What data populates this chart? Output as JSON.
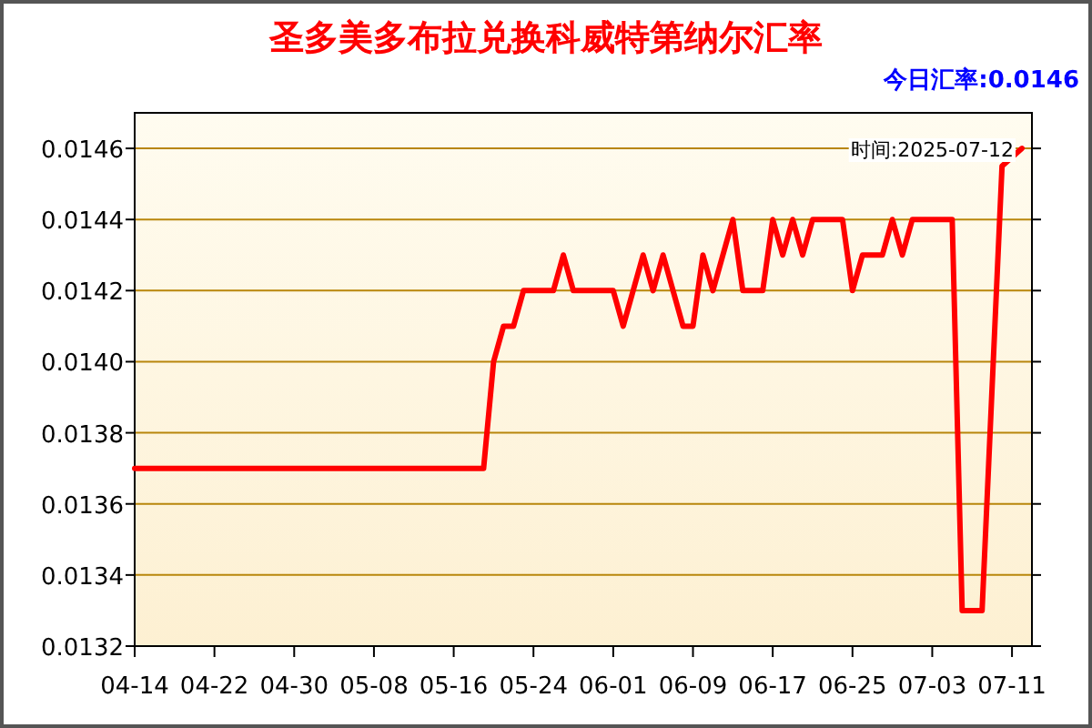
{
  "chart_data": {
    "type": "line",
    "title": "圣多美多布拉兑换科威特第纳尔汇率",
    "annotations": [
      "今日汇率:0.0146",
      "时间:2025-07-12"
    ],
    "x": [
      "2025-04-14",
      "2025-05-19",
      "2025-05-20",
      "2025-05-21",
      "2025-05-22",
      "2025-05-23",
      "2025-05-26",
      "2025-05-27",
      "2025-05-28",
      "2025-06-01",
      "2025-06-02",
      "2025-06-04",
      "2025-06-05",
      "2025-06-06",
      "2025-06-08",
      "2025-06-09",
      "2025-06-10",
      "2025-06-11",
      "2025-06-13",
      "2025-06-14",
      "2025-06-16",
      "2025-06-17",
      "2025-06-18",
      "2025-06-19",
      "2025-06-20",
      "2025-06-21",
      "2025-06-24",
      "2025-06-25",
      "2025-06-26",
      "2025-06-28",
      "2025-06-29",
      "2025-06-30",
      "2025-07-01",
      "2025-07-05",
      "2025-07-06",
      "2025-07-08",
      "2025-07-10",
      "2025-07-12"
    ],
    "series": [
      {
        "color": "#ff0000",
        "values": [
          0.0137,
          0.0137,
          0.014,
          0.0141,
          0.0141,
          0.0142,
          0.0142,
          0.0143,
          0.0142,
          0.0142,
          0.0141,
          0.0143,
          0.0142,
          0.0143,
          0.0141,
          0.0141,
          0.0143,
          0.0142,
          0.0144,
          0.0142,
          0.0142,
          0.0144,
          0.0143,
          0.0144,
          0.0143,
          0.0144,
          0.0144,
          0.0142,
          0.0143,
          0.0143,
          0.0144,
          0.0143,
          0.0144,
          0.0144,
          0.0133,
          0.0133,
          0.01455,
          0.0146
        ]
      }
    ],
    "xlim": [
      "2025-04-14",
      "2025-07-13"
    ],
    "xticks": [
      {
        "value": "2025-04-14",
        "label": "04-14"
      },
      {
        "value": "2025-04-22",
        "label": "04-22"
      },
      {
        "value": "2025-04-30",
        "label": "04-30"
      },
      {
        "value": "2025-05-08",
        "label": "05-08"
      },
      {
        "value": "2025-05-16",
        "label": "05-16"
      },
      {
        "value": "2025-05-24",
        "label": "05-24"
      },
      {
        "value": "2025-06-01",
        "label": "06-01"
      },
      {
        "value": "2025-06-09",
        "label": "06-09"
      },
      {
        "value": "2025-06-17",
        "label": "06-17"
      },
      {
        "value": "2025-06-25",
        "label": "06-25"
      },
      {
        "value": "2025-07-03",
        "label": "07-03"
      },
      {
        "value": "2025-07-11",
        "label": "07-11"
      }
    ],
    "ylim": [
      0.0132,
      0.0147
    ],
    "yticks": [
      0.0132,
      0.0134,
      0.0136,
      0.0138,
      {
        "value": 0.014,
        "label": "0.0140"
      },
      0.0142,
      0.0144,
      0.0146
    ],
    "grid": "y",
    "marker": "none",
    "line_style": "solid"
  }
}
